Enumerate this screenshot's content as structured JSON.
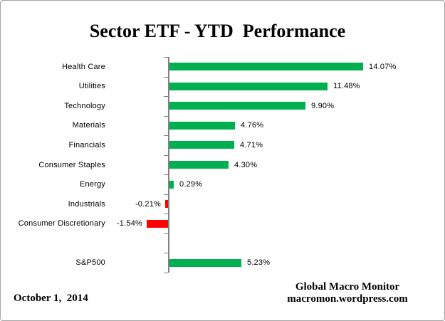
{
  "title": "Sector ETF - YTD  Performance",
  "footer": {
    "date": "October 1,  2014",
    "brand_line1": "Global Macro Monitor",
    "brand_line2": "macromon.wordpress.com"
  },
  "colors": {
    "positive_bar": "#00B050",
    "negative_bar": "#FF0000",
    "axis": "#808080",
    "border": "#A3A3A3"
  },
  "chart_data": {
    "type": "bar",
    "orientation": "horizontal",
    "title": "Sector ETF - YTD  Performance",
    "xlabel": "",
    "ylabel": "",
    "grid": false,
    "legend": false,
    "xlim": [
      -2,
      15
    ],
    "categories": [
      "Health Care",
      "Utilities",
      "Technology",
      "Materials",
      "Financials",
      "Consumer Staples",
      "Energy",
      "Industrials",
      "Consumer Discretionary",
      "",
      "S&P500"
    ],
    "values": [
      14.07,
      11.48,
      9.9,
      4.76,
      4.71,
      4.3,
      0.29,
      -0.21,
      -1.54,
      null,
      5.23
    ],
    "value_labels": [
      "14.07%",
      "11.48%",
      "9.90%",
      "4.76%",
      "4.71%",
      "4.30%",
      "0.29%",
      "-0.21%",
      "-1.54%",
      "",
      "5.23%"
    ]
  }
}
